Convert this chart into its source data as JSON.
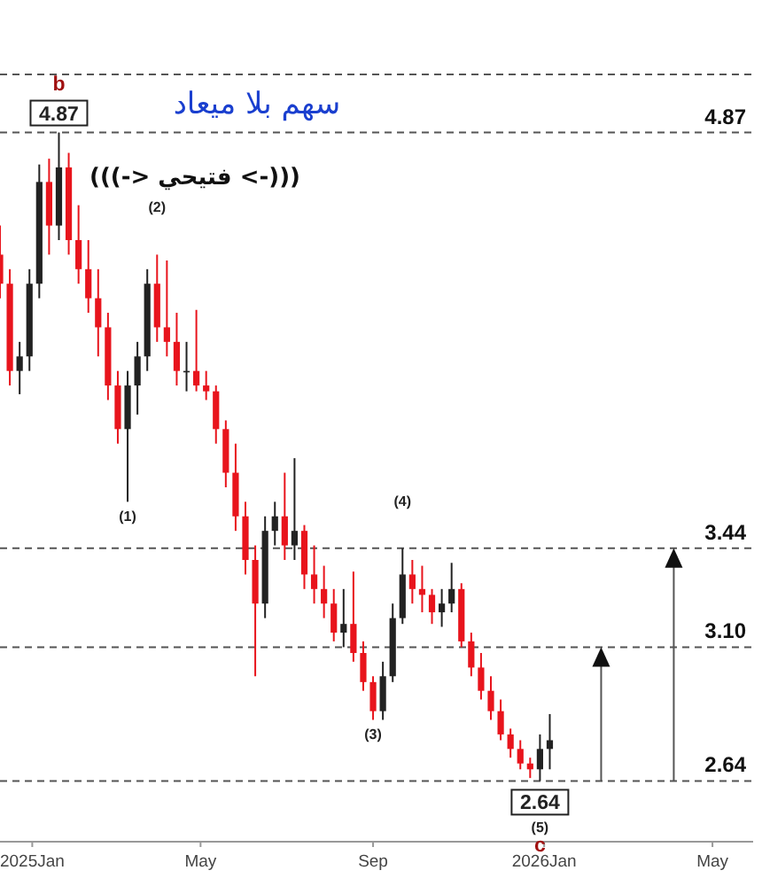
{
  "chart_data": {
    "type": "candlestick",
    "x": [
      "2024-12-09",
      "2024-12-16",
      "2024-12-23",
      "2024-12-30",
      "2025-01-06",
      "2025-01-13",
      "2025-01-20",
      "2025-01-27",
      "2025-02-03",
      "2025-02-10",
      "2025-02-17",
      "2025-02-24",
      "2025-03-03",
      "2025-03-10",
      "2025-03-17",
      "2025-03-24",
      "2025-03-31",
      "2025-04-07",
      "2025-04-14",
      "2025-04-21",
      "2025-04-28",
      "2025-05-05",
      "2025-05-12",
      "2025-05-19",
      "2025-05-26",
      "2025-06-02",
      "2025-06-09",
      "2025-06-16",
      "2025-06-23",
      "2025-06-30",
      "2025-07-07",
      "2025-07-14",
      "2025-07-21",
      "2025-07-28",
      "2025-08-04",
      "2025-08-11",
      "2025-08-18",
      "2025-08-25",
      "2025-09-01",
      "2025-09-08",
      "2025-09-15",
      "2025-09-22",
      "2025-09-29",
      "2025-10-06",
      "2025-10-13",
      "2025-10-20",
      "2025-10-27",
      "2025-11-03",
      "2025-11-10",
      "2025-11-17",
      "2025-11-24",
      "2025-12-01",
      "2025-12-08",
      "2025-12-15",
      "2025-12-22",
      "2025-12-29",
      "2026-01-05"
    ],
    "ohlc": [
      [
        4.45,
        4.55,
        4.3,
        4.35
      ],
      [
        4.35,
        4.4,
        4.0,
        4.05
      ],
      [
        4.05,
        4.15,
        3.97,
        4.1
      ],
      [
        4.1,
        4.4,
        4.05,
        4.35
      ],
      [
        4.35,
        4.76,
        4.3,
        4.7
      ],
      [
        4.7,
        4.78,
        4.45,
        4.55
      ],
      [
        4.55,
        4.87,
        4.5,
        4.75
      ],
      [
        4.75,
        4.8,
        4.45,
        4.5
      ],
      [
        4.5,
        4.62,
        4.35,
        4.4
      ],
      [
        4.4,
        4.5,
        4.25,
        4.3
      ],
      [
        4.3,
        4.4,
        4.1,
        4.2
      ],
      [
        4.2,
        4.25,
        3.95,
        4.0
      ],
      [
        4.0,
        4.05,
        3.8,
        3.85
      ],
      [
        3.85,
        4.05,
        3.6,
        4.0
      ],
      [
        4.0,
        4.15,
        3.9,
        4.1
      ],
      [
        4.1,
        4.4,
        4.05,
        4.35
      ],
      [
        4.35,
        4.45,
        4.15,
        4.2
      ],
      [
        4.2,
        4.43,
        4.1,
        4.15
      ],
      [
        4.15,
        4.25,
        4.0,
        4.05
      ],
      [
        4.05,
        4.15,
        3.98,
        4.05
      ],
      [
        4.05,
        4.26,
        3.98,
        4.0
      ],
      [
        4.0,
        4.05,
        3.95,
        3.98
      ],
      [
        3.98,
        4.0,
        3.8,
        3.85
      ],
      [
        3.85,
        3.88,
        3.65,
        3.7
      ],
      [
        3.7,
        3.8,
        3.5,
        3.55
      ],
      [
        3.55,
        3.6,
        3.35,
        3.4
      ],
      [
        3.4,
        3.45,
        3.0,
        3.25
      ],
      [
        3.25,
        3.55,
        3.2,
        3.5
      ],
      [
        3.5,
        3.6,
        3.45,
        3.55
      ],
      [
        3.55,
        3.7,
        3.4,
        3.45
      ],
      [
        3.45,
        3.75,
        3.4,
        3.5
      ],
      [
        3.5,
        3.52,
        3.3,
        3.35
      ],
      [
        3.35,
        3.45,
        3.25,
        3.3
      ],
      [
        3.3,
        3.38,
        3.2,
        3.25
      ],
      [
        3.25,
        3.3,
        3.12,
        3.15
      ],
      [
        3.15,
        3.3,
        3.1,
        3.18
      ],
      [
        3.18,
        3.36,
        3.05,
        3.08
      ],
      [
        3.08,
        3.12,
        2.95,
        2.98
      ],
      [
        2.98,
        3.0,
        2.85,
        2.88
      ],
      [
        2.88,
        3.05,
        2.85,
        3.0
      ],
      [
        3.0,
        3.25,
        2.98,
        3.2
      ],
      [
        3.2,
        3.44,
        3.18,
        3.35
      ],
      [
        3.35,
        3.4,
        3.25,
        3.3
      ],
      [
        3.3,
        3.38,
        3.22,
        3.28
      ],
      [
        3.28,
        3.3,
        3.18,
        3.22
      ],
      [
        3.22,
        3.3,
        3.17,
        3.25
      ],
      [
        3.25,
        3.39,
        3.22,
        3.3
      ],
      [
        3.3,
        3.32,
        3.1,
        3.12
      ],
      [
        3.12,
        3.15,
        3.0,
        3.03
      ],
      [
        3.03,
        3.08,
        2.92,
        2.95
      ],
      [
        2.95,
        3.0,
        2.85,
        2.88
      ],
      [
        2.88,
        2.92,
        2.78,
        2.8
      ],
      [
        2.8,
        2.82,
        2.72,
        2.75
      ],
      [
        2.75,
        2.78,
        2.68,
        2.7
      ],
      [
        2.7,
        2.72,
        2.65,
        2.68
      ],
      [
        2.68,
        2.8,
        2.64,
        2.75
      ],
      [
        2.75,
        2.87,
        2.68,
        2.78
      ]
    ],
    "colors": [
      "#e8141c",
      "#e8141c",
      "#222222",
      "#222222",
      "#222222",
      "#e8141c",
      "#222222",
      "#e8141c",
      "#e8141c",
      "#e8141c",
      "#e8141c",
      "#e8141c",
      "#e8141c",
      "#222222",
      "#222222",
      "#222222",
      "#e8141c",
      "#e8141c",
      "#e8141c",
      "#222222",
      "#e8141c",
      "#e8141c",
      "#e8141c",
      "#e8141c",
      "#e8141c",
      "#e8141c",
      "#e8141c",
      "#222222",
      "#222222",
      "#e8141c",
      "#222222",
      "#e8141c",
      "#e8141c",
      "#e8141c",
      "#e8141c",
      "#222222",
      "#e8141c",
      "#e8141c",
      "#e8141c",
      "#222222",
      "#222222",
      "#222222",
      "#e8141c",
      "#e8141c",
      "#e8141c",
      "#222222",
      "#222222",
      "#e8141c",
      "#e8141c",
      "#e8141c",
      "#e8141c",
      "#e8141c",
      "#e8141c",
      "#e8141c",
      "#e8141c",
      "#222222",
      "#222222"
    ],
    "xlim": [
      "2024-12-09",
      "2026-05-30"
    ],
    "xticks": [
      {
        "value": "2025-01-01",
        "label": "2025Jan"
      },
      {
        "value": "2025-05-01",
        "label": "May"
      },
      {
        "value": "2025-09-01",
        "label": "Sep"
      },
      {
        "value": "2026-01-01",
        "label": "2026Jan"
      },
      {
        "value": "2026-05-01",
        "label": "May"
      }
    ],
    "tick_labels": "x",
    "ref_lines": [
      {
        "axis": "y",
        "value": 5.07,
        "line_style": "dashed",
        "color": "#555555"
      },
      {
        "axis": "y",
        "value": 4.87,
        "label": "4.87",
        "line_style": "dashed",
        "color": "#555555"
      },
      {
        "axis": "y",
        "value": 3.44,
        "label": "3.44",
        "line_style": "dashed",
        "color": "#555555"
      },
      {
        "axis": "y",
        "value": 3.1,
        "label": "3.10",
        "line_style": "dashed",
        "color": "#555555"
      },
      {
        "axis": "y",
        "value": 2.64,
        "label": "2.64",
        "line_style": "dashed",
        "color": "#555555"
      }
    ],
    "annotations": [
      "سهم بلا ميعاد",
      "(((-> فتيحي <-)))",
      {
        "text": "4.87",
        "x": "2025-01-20",
        "y": 4.87
      },
      {
        "text": "b",
        "x": "2025-01-20",
        "y": 4.87
      },
      {
        "text": "(1)",
        "x": "2025-03-10",
        "y": 3.6
      },
      {
        "text": "(2)",
        "x": "2025-03-31",
        "y": 4.45
      },
      {
        "text": "(3)",
        "x": "2025-09-01",
        "y": 2.85
      },
      {
        "text": "(4)",
        "x": "2025-09-22",
        "y": 3.44
      },
      {
        "text": "2.64",
        "x": "2025-12-29",
        "y": 2.64
      },
      {
        "text": "(5)",
        "x": "2025-12-29",
        "y": 2.64
      },
      {
        "text": "c",
        "x": "2025-12-29",
        "y": 2.64
      }
    ]
  }
}
